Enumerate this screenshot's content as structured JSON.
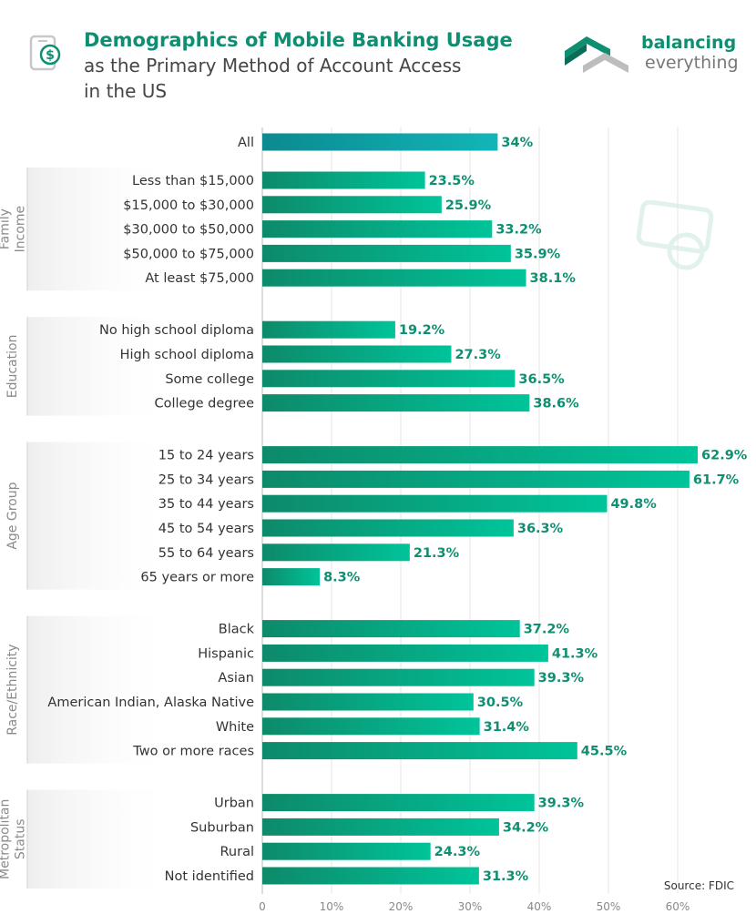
{
  "header": {
    "title": "Demographics of Mobile Banking Usage",
    "subtitle_line1": "as the Primary Method of Account Access",
    "subtitle_line2": "in the US"
  },
  "logo": {
    "line1": "balancing",
    "line2": "everything",
    "icon": "balancing-everything-logo-icon"
  },
  "header_icon": "mobile-dollar-icon",
  "source": "Source: FDIC",
  "colors": {
    "accent": "#0f8f72",
    "bar_start": "#0d8a6a",
    "bar_end": "#00c49a",
    "all_start": "#0b8a90",
    "all_end": "#12b5b8",
    "group_bg": "#f1f1f1",
    "grid": "#e6e6e6"
  },
  "chart_data": {
    "type": "bar",
    "orientation": "horizontal",
    "xlim": [
      0,
      60
    ],
    "x_ticks": [
      "0",
      "10%",
      "20%",
      "30%",
      "40%",
      "50%",
      "60%"
    ],
    "value_suffix": "%",
    "grid": true,
    "overall": {
      "label": "All",
      "value": 34,
      "display": "34%"
    },
    "groups": [
      {
        "name": "Family Income",
        "name_lines": [
          "Family",
          "Income"
        ],
        "items": [
          {
            "label": "Less than $15,000",
            "value": 23.5,
            "display": "23.5%"
          },
          {
            "label": "$15,000 to $30,000",
            "value": 25.9,
            "display": "25.9%"
          },
          {
            "label": "$30,000 to $50,000",
            "value": 33.2,
            "display": "33.2%"
          },
          {
            "label": "$50,000 to $75,000",
            "value": 35.9,
            "display": "35.9%"
          },
          {
            "label": "At least $75,000",
            "value": 38.1,
            "display": "38.1%"
          }
        ]
      },
      {
        "name": "Education",
        "name_lines": [
          "Education"
        ],
        "items": [
          {
            "label": "No high school diploma",
            "value": 19.2,
            "display": "19.2%"
          },
          {
            "label": "High school diploma",
            "value": 27.3,
            "display": "27.3%"
          },
          {
            "label": "Some college",
            "value": 36.5,
            "display": "36.5%"
          },
          {
            "label": "College degree",
            "value": 38.6,
            "display": "38.6%"
          }
        ]
      },
      {
        "name": "Age Group",
        "name_lines": [
          "Age Group"
        ],
        "items": [
          {
            "label": "15 to 24 years",
            "value": 62.9,
            "display": "62.9%"
          },
          {
            "label": "25 to 34 years",
            "value": 61.7,
            "display": "61.7%"
          },
          {
            "label": "35 to 44 years",
            "value": 49.8,
            "display": "49.8%"
          },
          {
            "label": "45 to 54 years",
            "value": 36.3,
            "display": "36.3%"
          },
          {
            "label": "55 to 64 years",
            "value": 21.3,
            "display": "21.3%"
          },
          {
            "label": "65 years or more",
            "value": 8.3,
            "display": "8.3%"
          }
        ]
      },
      {
        "name": "Race/Ethnicity",
        "name_lines": [
          "Race/Ethnicity"
        ],
        "items": [
          {
            "label": "Black",
            "value": 37.2,
            "display": "37.2%"
          },
          {
            "label": "Hispanic",
            "value": 41.3,
            "display": "41.3%"
          },
          {
            "label": "Asian",
            "value": 39.3,
            "display": "39.3%"
          },
          {
            "label": "American Indian, Alaska Native",
            "value": 30.5,
            "display": "30.5%"
          },
          {
            "label": "White",
            "value": 31.4,
            "display": "31.4%"
          },
          {
            "label": "Two or more races",
            "value": 45.5,
            "display": "45.5%"
          }
        ]
      },
      {
        "name": "Metropolitan Status",
        "name_lines": [
          "Metropolitan",
          "Status"
        ],
        "items": [
          {
            "label": "Urban",
            "value": 39.3,
            "display": "39.3%"
          },
          {
            "label": "Suburban",
            "value": 34.2,
            "display": "34.2%"
          },
          {
            "label": "Rural",
            "value": 24.3,
            "display": "24.3%"
          },
          {
            "label": "Not identified",
            "value": 31.3,
            "display": "31.3%"
          }
        ]
      }
    ]
  }
}
